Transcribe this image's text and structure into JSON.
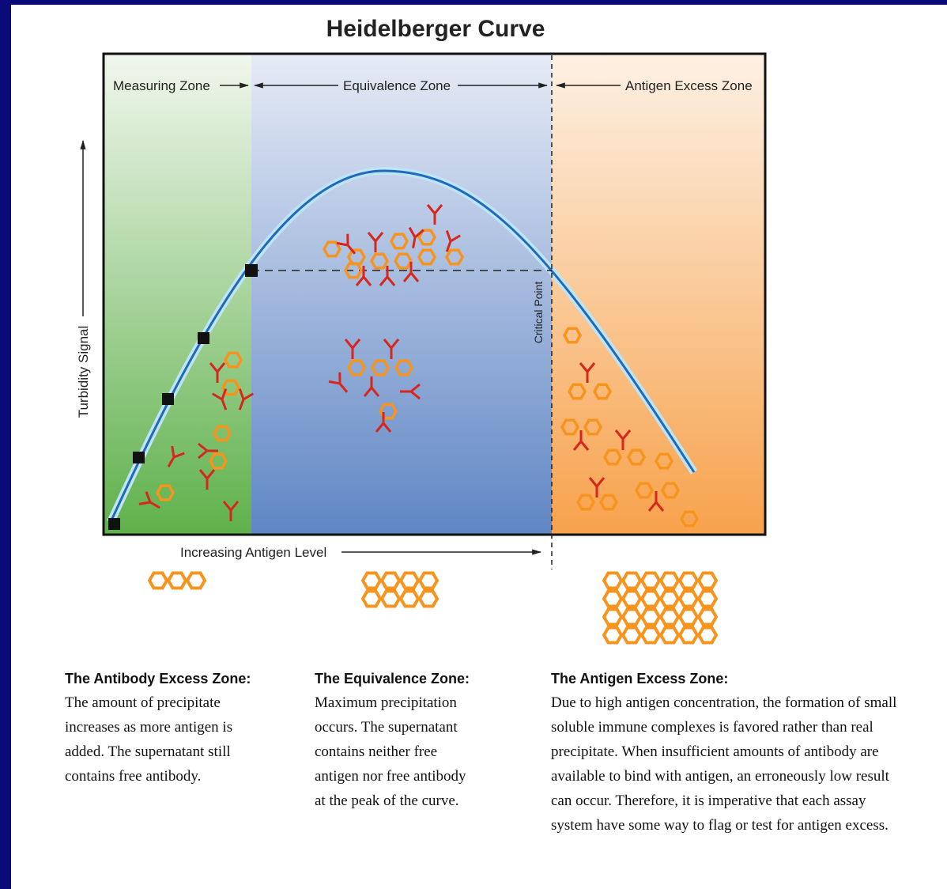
{
  "title": "Heidelberger Curve",
  "zones": {
    "measuring": "Measuring Zone",
    "equivalence": "Equivalence Zone",
    "antigen_excess": "Antigen Excess Zone"
  },
  "axes": {
    "y": "Turbidity Signal",
    "x": "Increasing Antigen Level"
  },
  "critical_point": "Critical Point",
  "descriptions": [
    {
      "heading": "The Antibody Excess Zone:",
      "lines": [
        "The amount of precipitate",
        "increases as more antigen is",
        "added. The supernatant still",
        "contains free antibody."
      ]
    },
    {
      "heading": "The Equivalence Zone:",
      "lines": [
        "Maximum precipitation",
        "occurs. The supernatant",
        "contains neither free",
        "antigen nor free antibody",
        "at the peak of the curve."
      ]
    },
    {
      "heading": "The Antigen Excess Zone:",
      "lines": [
        "Due to high antigen concentration, the formation of small",
        "soluble immune complexes is favored rather than real",
        "precipitate. When insufficient amounts of antibody are",
        "available to bind with antigen, an erroneously low result",
        "can occur. Therefore, it is imperative that each assay",
        "system have some way to flag or test for antigen excess."
      ]
    }
  ]
}
